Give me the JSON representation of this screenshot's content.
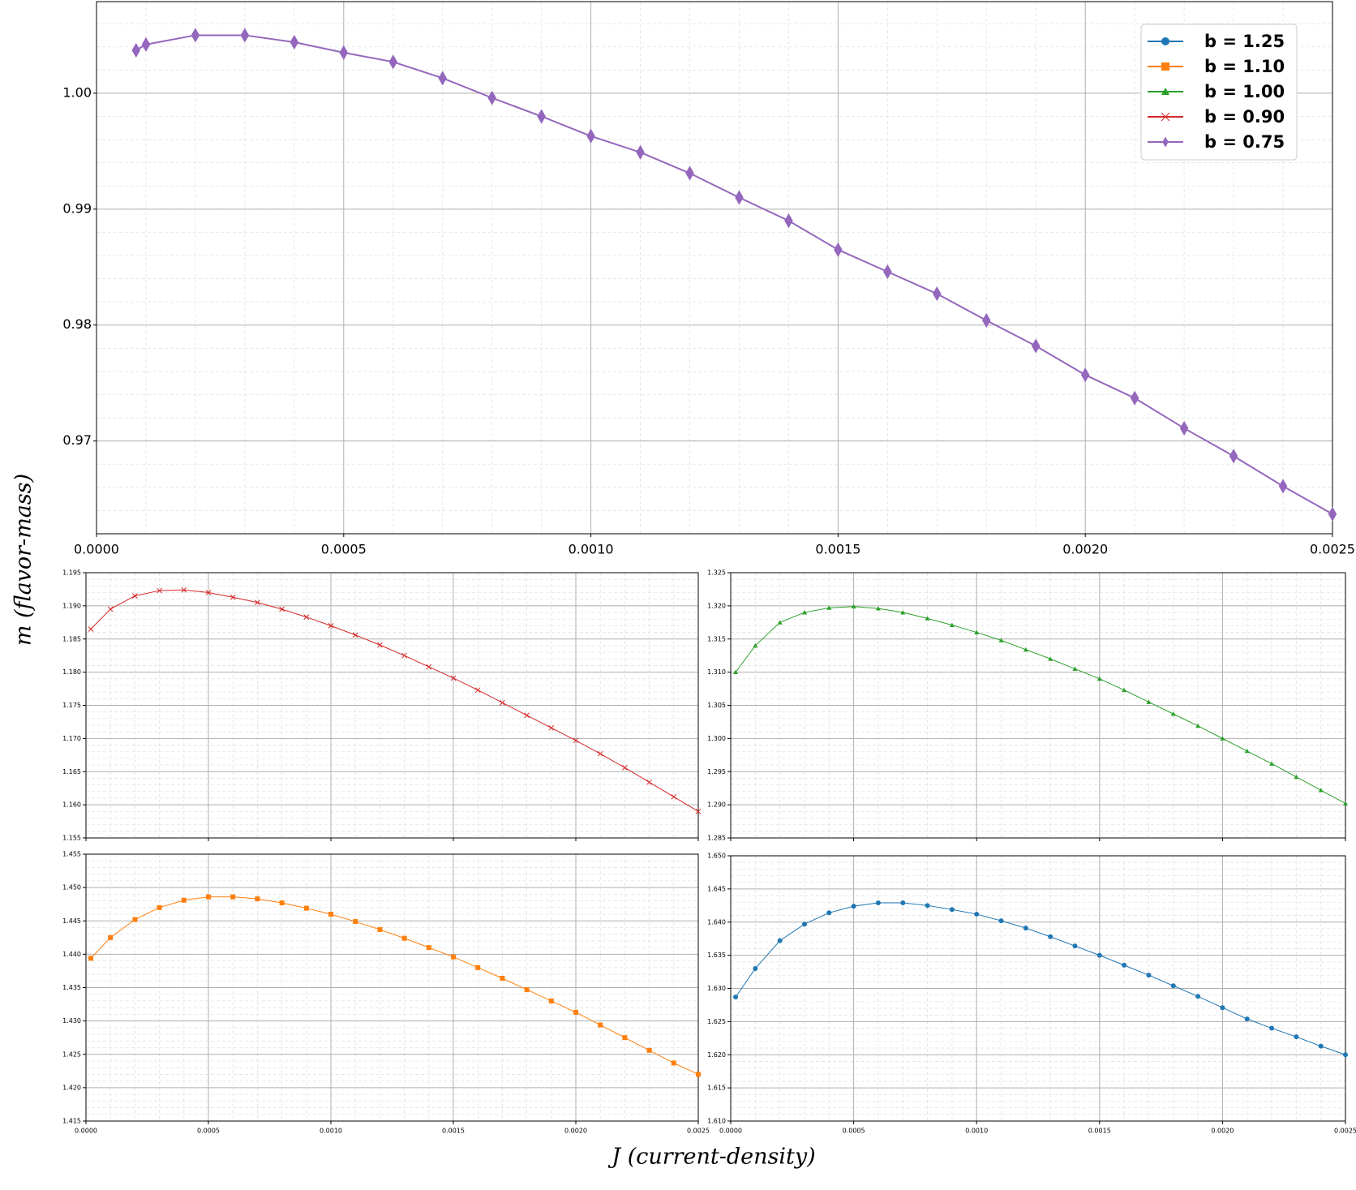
{
  "figure": {
    "ylabel": "m (flavor-mass)",
    "xlabel": "J (current-density)"
  },
  "chart_data": [
    {
      "type": "line",
      "xlim": [
        0,
        0.0025
      ],
      "ylim": [
        0.962,
        1.0079
      ],
      "xticks": [
        {
          "value": 0,
          "label": "0.0000"
        },
        {
          "value": 0.0005,
          "label": "0.0005"
        },
        {
          "value": 0.001,
          "label": "0.0010"
        },
        {
          "value": 0.0015,
          "label": "0.0015"
        },
        {
          "value": 0.002,
          "label": "0.0020"
        },
        {
          "value": 0.0025,
          "label": "0.0025"
        }
      ],
      "yticks": [
        0.97,
        0.98,
        0.99,
        {
          "value": 1,
          "label": "1.00"
        }
      ],
      "grid": true,
      "minor_grid": true,
      "series": [
        {
          "color": "#9467bd",
          "marker": "diamond",
          "x": [
            8e-05,
            0.0001,
            0.0002,
            0.0003,
            0.0004,
            0.0005,
            0.0006,
            0.0007,
            0.0008,
            0.0009,
            0.001,
            0.0011,
            0.0012,
            0.0013,
            0.0014,
            0.0015,
            0.0016,
            0.0017,
            0.0018,
            0.0019,
            0.002,
            0.0021,
            0.0022,
            0.0023,
            0.0024,
            0.0025
          ],
          "values": [
            1.0037,
            1.0042,
            1.005,
            1.005,
            1.0044,
            1.0035,
            1.0027,
            1.0013,
            0.9996,
            0.998,
            0.9963,
            0.9949,
            0.9931,
            0.991,
            0.989,
            0.9865,
            0.9846,
            0.9827,
            0.9804,
            0.9782,
            0.9757,
            0.9737,
            0.9711,
            0.9687,
            0.9661,
            0.9637
          ]
        }
      ],
      "legend": {
        "loc": "upper right",
        "entries": [
          {
            "name": "b = 1.25",
            "color": "#1f77b4",
            "marker": "circle"
          },
          {
            "name": "b = 1.10",
            "color": "#ff7f0e",
            "marker": "square"
          },
          {
            "name": "b = 1.00",
            "color": "#2ca02c",
            "marker": "triangle"
          },
          {
            "name": "b = 0.90",
            "color": "#d62728",
            "marker": "x"
          },
          {
            "name": "b = 0.75",
            "color": "#9467bd",
            "marker": "diamond"
          }
        ]
      }
    },
    {
      "type": "line",
      "xlim": [
        0,
        0.0025
      ],
      "ylim": [
        1.155,
        1.195
      ],
      "xticks": [
        0,
        0.0005,
        0.001,
        0.0015,
        0.002,
        0.0025
      ],
      "xtick_labels": false,
      "yticks": [
        1.155,
        {
          "value": 1.16,
          "label": "1.160"
        },
        1.165,
        {
          "value": 1.17,
          "label": "1.170"
        },
        1.175,
        {
          "value": 1.18,
          "label": "1.180"
        },
        1.185,
        {
          "value": 1.19,
          "label": "1.190"
        },
        1.195
      ],
      "grid": true,
      "minor_grid": true,
      "series": [
        {
          "color": "#d62728",
          "marker": "x",
          "x": [
            2e-05,
            0.0001,
            0.0002,
            0.0003,
            0.0004,
            0.0005,
            0.0006,
            0.0007,
            0.0008,
            0.0009,
            0.001,
            0.0011,
            0.0012,
            0.0013,
            0.0014,
            0.0015,
            0.0016,
            0.0017,
            0.0018,
            0.0019,
            0.002,
            0.0021,
            0.0022,
            0.0023,
            0.0024,
            0.0025
          ],
          "values": [
            1.1865,
            1.1895,
            1.1915,
            1.1923,
            1.1924,
            1.192,
            1.1913,
            1.1905,
            1.1895,
            1.1883,
            1.187,
            1.1856,
            1.1841,
            1.1825,
            1.1808,
            1.1791,
            1.1773,
            1.1754,
            1.1735,
            1.1716,
            1.1697,
            1.1677,
            1.1656,
            1.1634,
            1.1612,
            1.159
          ]
        }
      ]
    },
    {
      "type": "line",
      "xlim": [
        0,
        0.0025
      ],
      "ylim": [
        1.285,
        1.325
      ],
      "xticks": [
        0,
        0.0005,
        0.001,
        0.0015,
        0.002,
        0.0025
      ],
      "xtick_labels": false,
      "yticks": [
        1.285,
        {
          "value": 1.29,
          "label": "1.290"
        },
        1.295,
        {
          "value": 1.3,
          "label": "1.300"
        },
        1.305,
        {
          "value": 1.31,
          "label": "1.310"
        },
        1.315,
        {
          "value": 1.32,
          "label": "1.320"
        },
        1.325
      ],
      "grid": true,
      "minor_grid": true,
      "series": [
        {
          "color": "#2ca02c",
          "marker": "triangle",
          "x": [
            2e-05,
            0.0001,
            0.0002,
            0.0003,
            0.0004,
            0.0005,
            0.0006,
            0.0007,
            0.0008,
            0.0009,
            0.001,
            0.0011,
            0.0012,
            0.0013,
            0.0014,
            0.0015,
            0.0016,
            0.0017,
            0.0018,
            0.0019,
            0.002,
            0.0021,
            0.0022,
            0.0023,
            0.0024,
            0.0025
          ],
          "values": [
            1.31,
            1.314,
            1.3175,
            1.319,
            1.3197,
            1.3199,
            1.3196,
            1.319,
            1.3181,
            1.3171,
            1.316,
            1.3148,
            1.3134,
            1.312,
            1.3105,
            1.309,
            1.3073,
            1.3055,
            1.3037,
            1.3019,
            1.3,
            1.2981,
            1.2962,
            1.2942,
            1.2922,
            1.2902
          ]
        }
      ]
    },
    {
      "type": "line",
      "xlim": [
        0,
        0.0025
      ],
      "ylim": [
        1.415,
        1.455
      ],
      "xticks": [
        {
          "value": 0,
          "label": "0.0000"
        },
        {
          "value": 0.0005,
          "label": "0.0005"
        },
        {
          "value": 0.001,
          "label": "0.0010"
        },
        {
          "value": 0.0015,
          "label": "0.0015"
        },
        {
          "value": 0.002,
          "label": "0.0020"
        },
        {
          "value": 0.0025,
          "label": "0.0025"
        }
      ],
      "yticks": [
        1.415,
        {
          "value": 1.42,
          "label": "1.420"
        },
        1.425,
        {
          "value": 1.43,
          "label": "1.430"
        },
        1.435,
        {
          "value": 1.44,
          "label": "1.440"
        },
        1.445,
        {
          "value": 1.45,
          "label": "1.450"
        },
        1.455
      ],
      "grid": true,
      "minor_grid": true,
      "series": [
        {
          "color": "#ff7f0e",
          "marker": "square",
          "x": [
            2e-05,
            0.0001,
            0.0002,
            0.0003,
            0.0004,
            0.0005,
            0.0006,
            0.0007,
            0.0008,
            0.0009,
            0.001,
            0.0011,
            0.0012,
            0.0013,
            0.0014,
            0.0015,
            0.0016,
            0.0017,
            0.0018,
            0.0019,
            0.002,
            0.0021,
            0.0022,
            0.0023,
            0.0024,
            0.0025
          ],
          "values": [
            1.4394,
            1.4425,
            1.4452,
            1.447,
            1.4481,
            1.4486,
            1.4486,
            1.4483,
            1.4477,
            1.4469,
            1.446,
            1.4449,
            1.4437,
            1.4424,
            1.441,
            1.4396,
            1.438,
            1.4364,
            1.4347,
            1.433,
            1.4313,
            1.4294,
            1.4275,
            1.4256,
            1.4237,
            1.422
          ]
        }
      ]
    },
    {
      "type": "line",
      "xlim": [
        0,
        0.0025
      ],
      "ylim": [
        1.61,
        1.65
      ],
      "xticks": [
        {
          "value": 0,
          "label": "0.0000"
        },
        {
          "value": 0.0005,
          "label": "0.0005"
        },
        {
          "value": 0.001,
          "label": "0.0010"
        },
        {
          "value": 0.0015,
          "label": "0.0015"
        },
        {
          "value": 0.002,
          "label": "0.0020"
        },
        {
          "value": 0.0025,
          "label": "0.0025"
        }
      ],
      "yticks": [
        {
          "value": 1.61,
          "label": "1.610"
        },
        1.615,
        {
          "value": 1.62,
          "label": "1.620"
        },
        1.625,
        {
          "value": 1.63,
          "label": "1.630"
        },
        1.635,
        {
          "value": 1.64,
          "label": "1.640"
        },
        1.645,
        {
          "value": 1.65,
          "label": "1.650"
        }
      ],
      "grid": true,
      "minor_grid": true,
      "series": [
        {
          "color": "#1f77b4",
          "marker": "circle",
          "x": [
            2e-05,
            0.0001,
            0.0002,
            0.0003,
            0.0004,
            0.0005,
            0.0006,
            0.0007,
            0.0008,
            0.0009,
            0.001,
            0.0011,
            0.0012,
            0.0013,
            0.0014,
            0.0015,
            0.0016,
            0.0017,
            0.0018,
            0.0019,
            0.002,
            0.0021,
            0.0022,
            0.0023,
            0.0024,
            0.0025
          ],
          "values": [
            1.6287,
            1.633,
            1.6372,
            1.6397,
            1.6414,
            1.6424,
            1.6429,
            1.6429,
            1.6425,
            1.6419,
            1.6412,
            1.6402,
            1.6391,
            1.6378,
            1.6364,
            1.635,
            1.6335,
            1.632,
            1.6304,
            1.6288,
            1.6271,
            1.6254,
            1.624,
            1.6227,
            1.6213,
            1.62
          ]
        }
      ]
    }
  ]
}
